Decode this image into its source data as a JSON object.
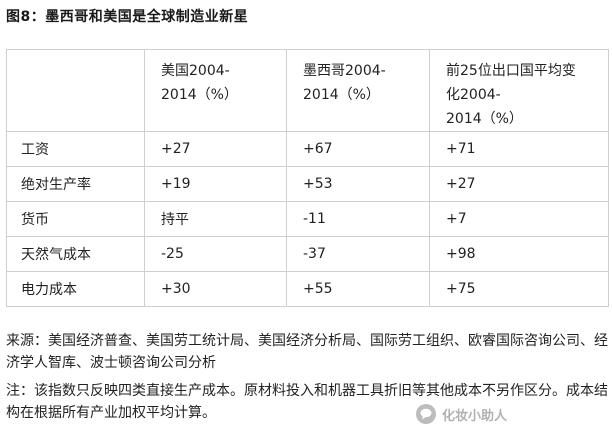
{
  "title": "图8：墨西哥和美国是全球制造业新星",
  "table": {
    "headers": [
      "",
      "美国2004-\n2014（%）",
      "墨西哥2004-\n2014（%）",
      "前25位出口国平均变\n化2004-\n2014（%）"
    ],
    "rows": [
      [
        "工资",
        "+27",
        "+67",
        "+71"
      ],
      [
        "绝对生产率",
        "+19",
        "+53",
        "+27"
      ],
      [
        "货币",
        "持平",
        "-11",
        "+7"
      ],
      [
        "天然气成本",
        "-25",
        "-37",
        "+98"
      ],
      [
        "电力成本",
        "+30",
        "+55",
        "+75"
      ]
    ]
  },
  "source_note": "来源：美国经济普查、美国劳工统计局、美国经济分析局、国际劳工组织、欧睿国际咨询公司、经济学人智库、波士顿咨询公司分析",
  "footnote": "注：该指数只反映四类直接生产成本。原材料投入和机器工具折旧等其他成本不另作区分。成本结构在根据所有产业加权平均计算。",
  "watermark": {
    "text": "化妆小助人",
    "icon": "chat-bubble-icon",
    "color": "#6c6c6c"
  }
}
